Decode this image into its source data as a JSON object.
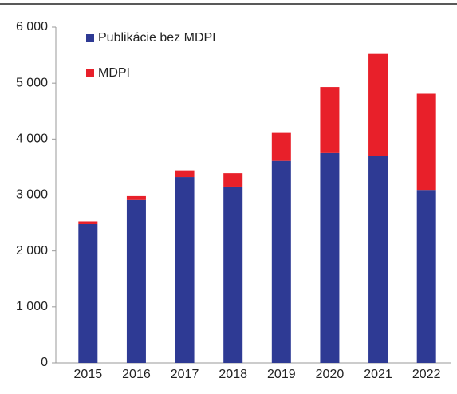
{
  "chart_data": {
    "type": "stacked_bar",
    "categories": [
      "2015",
      "2016",
      "2017",
      "2018",
      "2019",
      "2020",
      "2021",
      "2022"
    ],
    "series": [
      {
        "name": "Publikácie bez MDPI",
        "color": "#2e3a94",
        "values": [
          2480,
          2910,
          3320,
          3150,
          3610,
          3750,
          3700,
          3090
        ]
      },
      {
        "name": "MDPI",
        "color": "#e8202a",
        "values": [
          50,
          70,
          120,
          240,
          500,
          1180,
          1820,
          1720
        ]
      }
    ],
    "ylim": [
      0,
      6000
    ],
    "yticks": [
      0,
      {
        "value": 1000,
        "label": "1 000"
      },
      {
        "value": 2000,
        "label": "2 000"
      },
      {
        "value": 3000,
        "label": "3 000"
      },
      {
        "value": 4000,
        "label": "4 000"
      },
      {
        "value": 5000,
        "label": "5 000"
      },
      {
        "value": 6000,
        "label": "6 000"
      }
    ],
    "legend": "upper left"
  }
}
